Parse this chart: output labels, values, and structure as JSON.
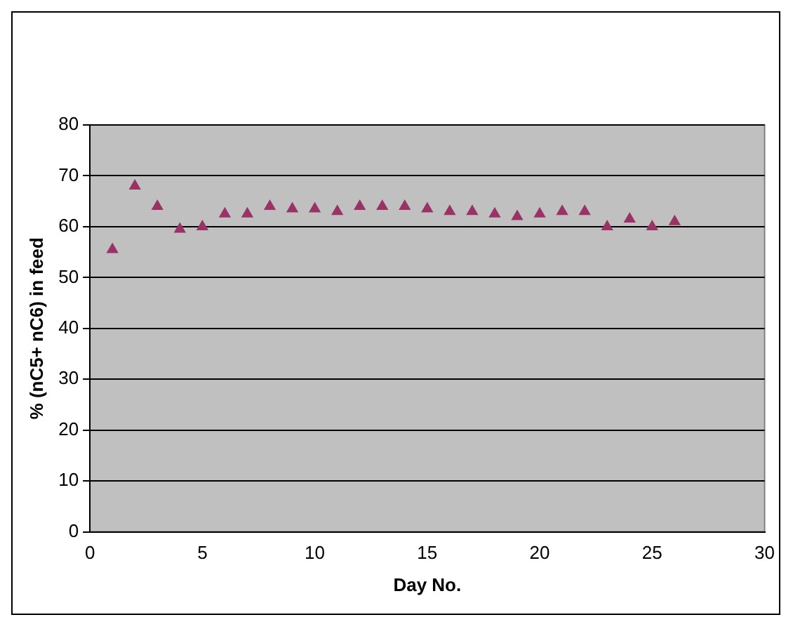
{
  "chart_data": {
    "type": "scatter",
    "xlabel": "Day No.",
    "ylabel": "% (nC5+ nC6) in feed",
    "x": [
      1,
      2,
      3,
      4,
      5,
      6,
      7,
      8,
      9,
      10,
      11,
      12,
      13,
      14,
      15,
      16,
      17,
      18,
      19,
      20,
      21,
      22,
      23,
      24,
      25,
      26
    ],
    "series": [
      {
        "color": "#993366",
        "values": [
          55.5,
          68,
          64,
          59.5,
          60,
          62.5,
          62.5,
          64,
          63.5,
          63.5,
          63,
          64,
          64,
          64,
          63.5,
          63,
          63,
          62.5,
          62,
          62.5,
          63,
          63,
          60,
          61.5,
          60,
          61
        ]
      }
    ],
    "xlim": [
      0,
      30
    ],
    "xticks": [
      0,
      5,
      10,
      15,
      20,
      25,
      30
    ],
    "ylim": [
      0,
      80
    ],
    "yticks": [
      0,
      10,
      20,
      30,
      40,
      50,
      60,
      70,
      80
    ],
    "grid": "y",
    "legend": false,
    "marker": "triangle"
  }
}
